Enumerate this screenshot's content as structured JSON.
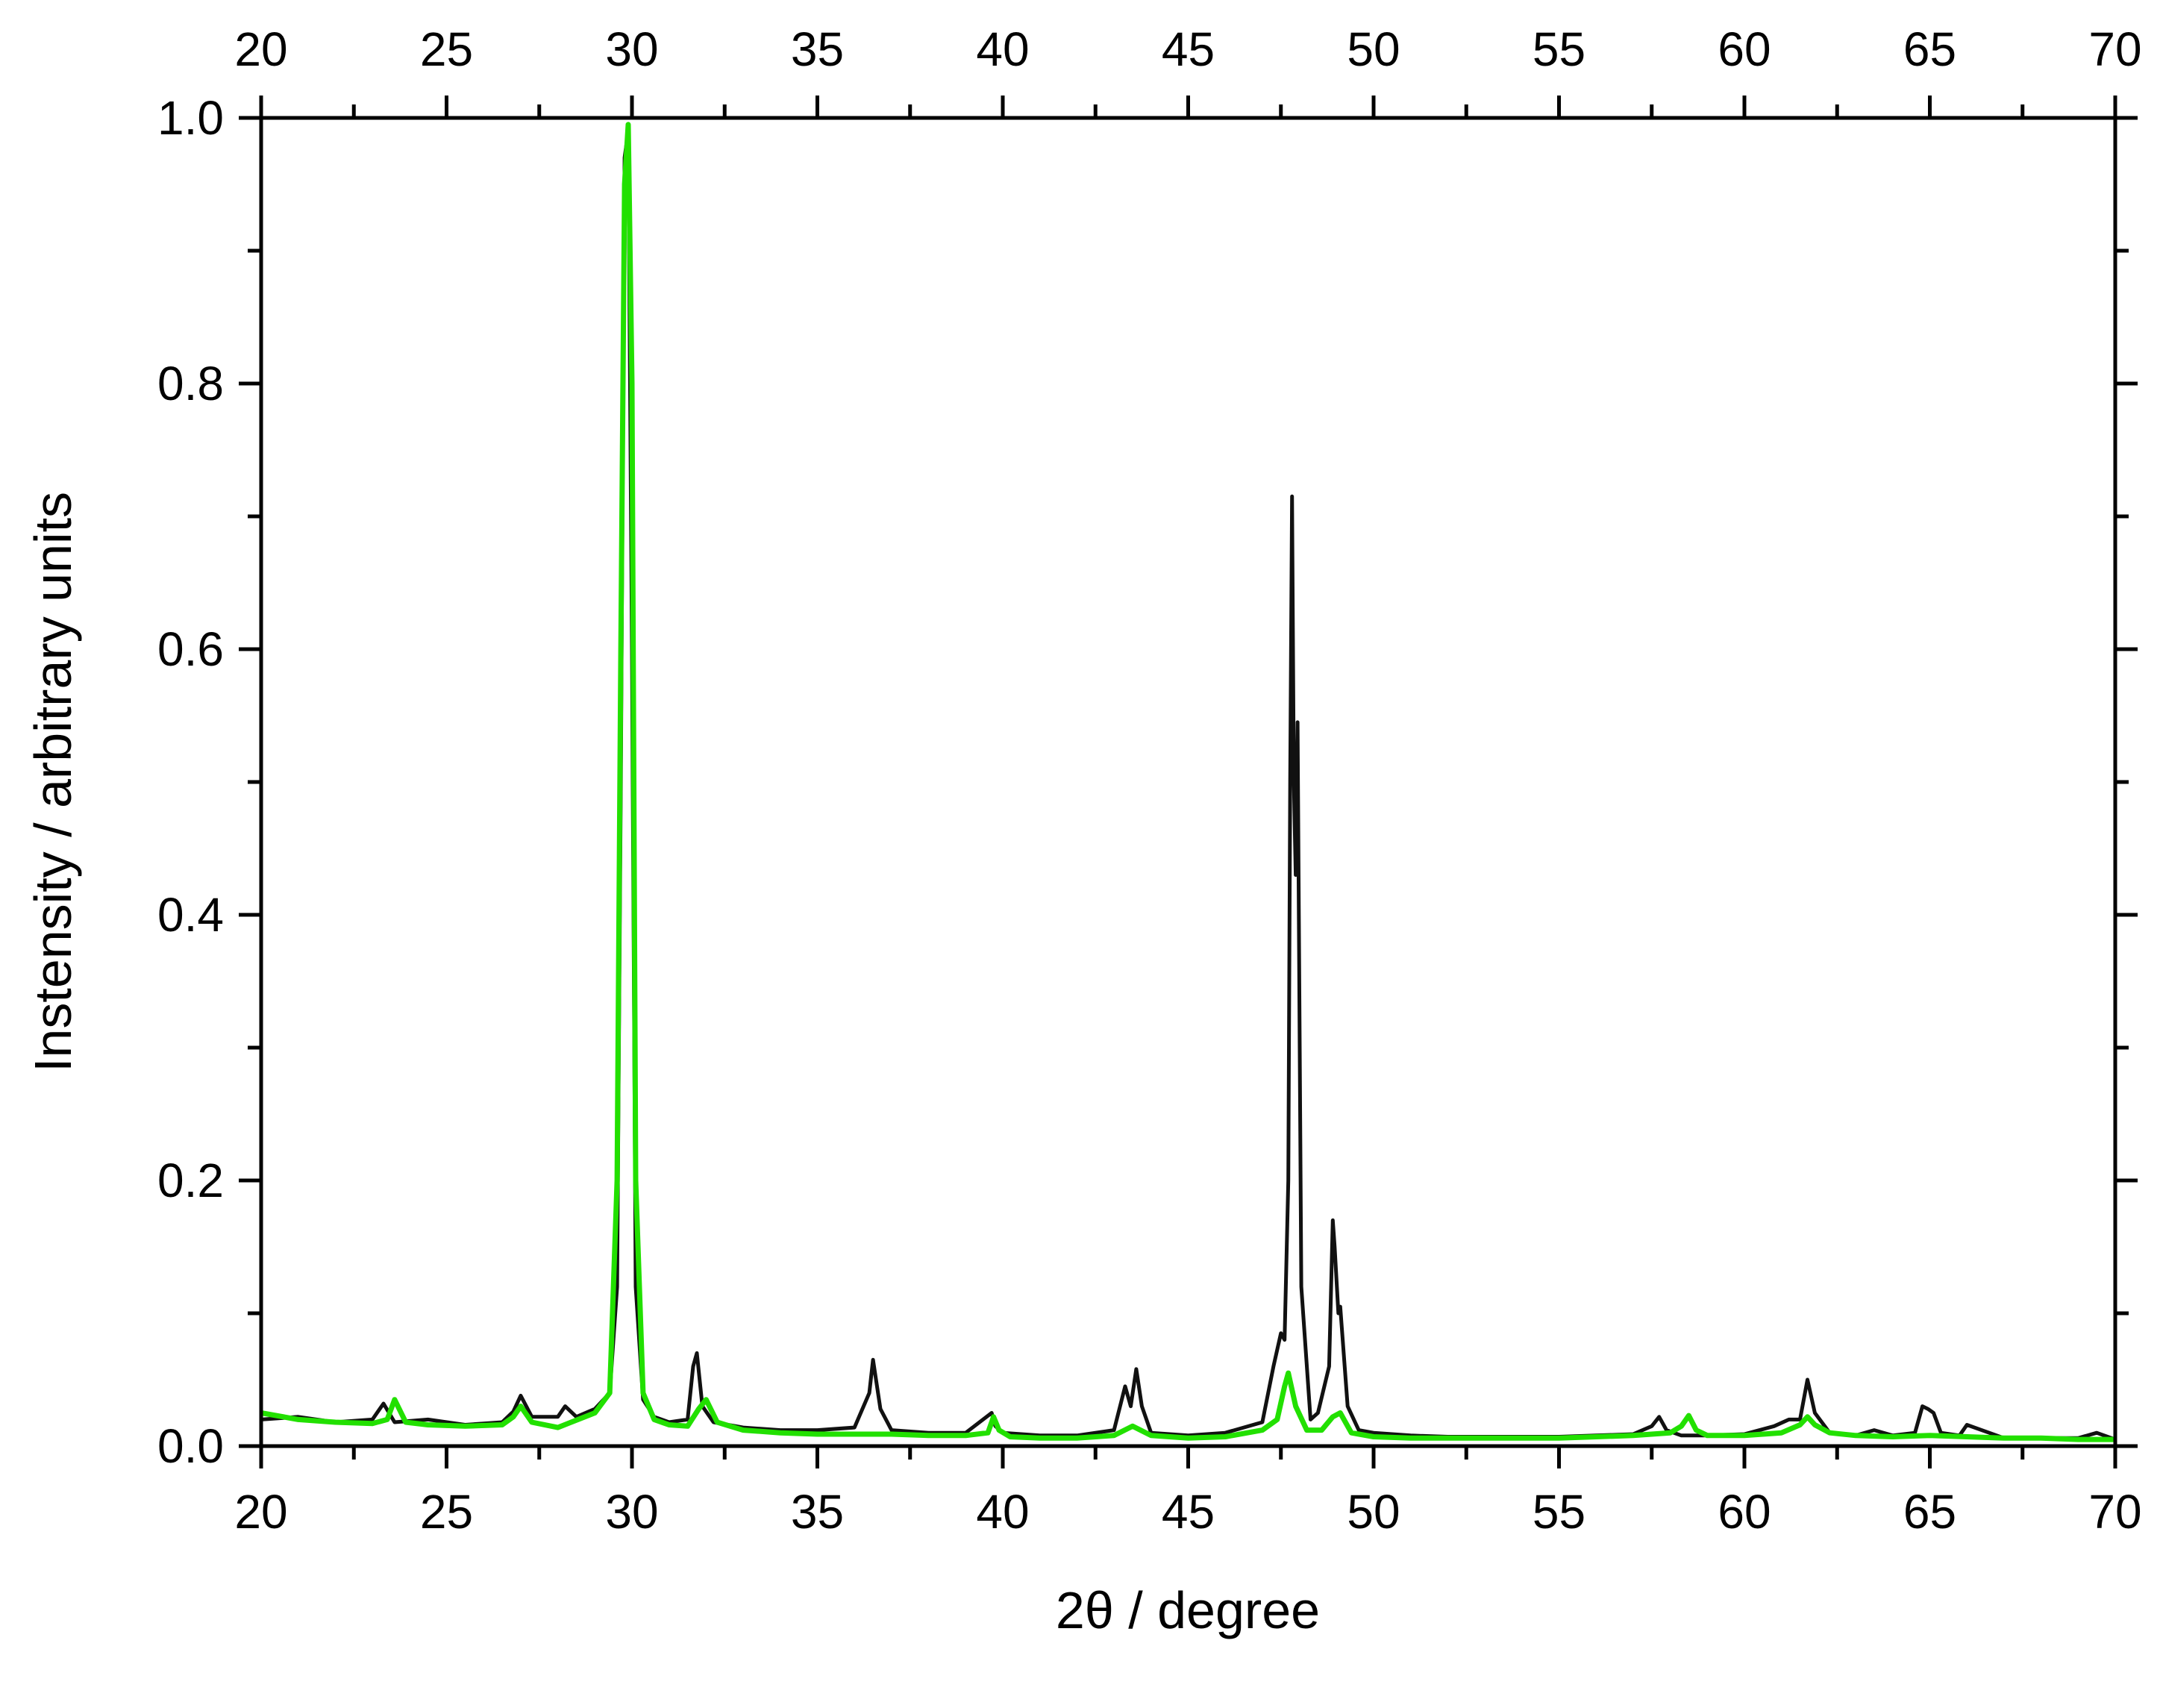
{
  "chart_data": {
    "type": "line",
    "xlabel": "2θ / degree",
    "ylabel": "Instensity / arbitrary units",
    "xlim": [
      20,
      70
    ],
    "ylim": [
      0,
      1.0
    ],
    "x_ticks": [
      "20",
      "25",
      "30",
      "35",
      "40",
      "45",
      "50",
      "55",
      "60",
      "65",
      "70"
    ],
    "x_top_ticks": [
      "20",
      "25",
      "30",
      "35",
      "40",
      "45",
      "50",
      "55",
      "60",
      "65",
      "70"
    ],
    "y_ticks": [
      "0.0",
      "0.2",
      "0.4",
      "0.6",
      "0.8",
      "1.0"
    ],
    "x_tick_values": [
      20,
      25,
      30,
      35,
      40,
      45,
      50,
      55,
      60,
      65,
      70
    ],
    "y_tick_values": [
      0,
      0.2,
      0.4,
      0.6,
      0.8,
      1.0
    ],
    "grid": false,
    "series": [
      {
        "color": "#111111",
        "x": [
          20.0,
          21.0,
          22.0,
          23.0,
          23.3,
          23.6,
          24.5,
          25.5,
          26.5,
          26.8,
          27.0,
          27.3,
          28.0,
          28.2,
          28.5,
          29.0,
          29.4,
          29.6,
          29.7,
          29.8,
          29.9,
          30.0,
          30.1,
          30.3,
          30.6,
          31.0,
          31.5,
          31.65,
          31.75,
          31.9,
          32.2,
          33.0,
          34.0,
          35.0,
          36.0,
          36.4,
          36.5,
          36.7,
          37.0,
          38.0,
          39.0,
          39.7,
          39.8,
          40.0,
          41.0,
          42.0,
          43.0,
          43.3,
          43.45,
          43.6,
          43.75,
          44.0,
          45.0,
          46.0,
          47.0,
          47.3,
          47.5,
          47.6,
          47.7,
          47.75,
          47.8,
          47.85,
          47.9,
          47.95,
          48.05,
          48.3,
          48.5,
          48.8,
          48.9,
          48.95,
          49.05,
          49.1,
          49.3,
          49.6,
          50.0,
          51.0,
          52.0,
          53.0,
          54.0,
          55.0,
          56.0,
          57.0,
          57.5,
          57.7,
          57.9,
          58.3,
          59.0,
          60.0,
          60.8,
          61.2,
          61.5,
          61.7,
          61.9,
          62.3,
          63.0,
          63.5,
          64.0,
          64.6,
          64.8,
          64.95,
          65.1,
          65.3,
          65.8,
          66.0,
          67.0,
          68.0,
          69.0,
          69.5,
          70.0
        ],
        "y": [
          0.02,
          0.022,
          0.018,
          0.02,
          0.032,
          0.018,
          0.02,
          0.016,
          0.018,
          0.026,
          0.038,
          0.022,
          0.022,
          0.03,
          0.022,
          0.028,
          0.04,
          0.12,
          0.5,
          0.97,
          0.99,
          0.6,
          0.12,
          0.035,
          0.022,
          0.018,
          0.02,
          0.06,
          0.07,
          0.03,
          0.018,
          0.014,
          0.012,
          0.012,
          0.014,
          0.04,
          0.065,
          0.028,
          0.012,
          0.01,
          0.01,
          0.025,
          0.015,
          0.01,
          0.008,
          0.008,
          0.012,
          0.045,
          0.03,
          0.058,
          0.03,
          0.01,
          0.008,
          0.01,
          0.018,
          0.06,
          0.085,
          0.08,
          0.2,
          0.5,
          0.715,
          0.5,
          0.43,
          0.545,
          0.12,
          0.02,
          0.025,
          0.06,
          0.17,
          0.15,
          0.1,
          0.105,
          0.03,
          0.012,
          0.01,
          0.008,
          0.007,
          0.007,
          0.007,
          0.007,
          0.008,
          0.009,
          0.015,
          0.022,
          0.012,
          0.008,
          0.008,
          0.009,
          0.015,
          0.02,
          0.02,
          0.05,
          0.025,
          0.01,
          0.008,
          0.012,
          0.008,
          0.01,
          0.03,
          0.028,
          0.025,
          0.01,
          0.008,
          0.016,
          0.006,
          0.006,
          0.006,
          0.01,
          0.005
        ]
      },
      {
        "color": "#22e000",
        "x": [
          20.0,
          21.0,
          22.0,
          23.0,
          23.4,
          23.6,
          23.9,
          24.5,
          25.5,
          26.5,
          26.8,
          27.0,
          27.3,
          28.0,
          29.0,
          29.4,
          29.6,
          29.7,
          29.8,
          29.9,
          30.0,
          30.1,
          30.3,
          30.6,
          31.0,
          31.5,
          31.8,
          32.0,
          32.3,
          33.0,
          34.0,
          35.0,
          36.0,
          37.0,
          38.0,
          39.0,
          39.6,
          39.75,
          39.9,
          40.2,
          41.0,
          42.0,
          43.0,
          43.5,
          44.0,
          45.0,
          46.0,
          47.0,
          47.4,
          47.6,
          47.7,
          47.9,
          48.2,
          48.6,
          48.9,
          49.1,
          49.4,
          50.0,
          51.0,
          52.0,
          53.0,
          54.0,
          55.0,
          56.0,
          57.0,
          58.0,
          58.3,
          58.5,
          58.7,
          59.0,
          60.0,
          61.0,
          61.5,
          61.7,
          61.9,
          62.3,
          63.0,
          64.0,
          65.0,
          66.0,
          67.0,
          68.0,
          69.0,
          70.0
        ],
        "y": [
          0.025,
          0.02,
          0.018,
          0.017,
          0.02,
          0.035,
          0.018,
          0.016,
          0.015,
          0.016,
          0.022,
          0.03,
          0.018,
          0.014,
          0.025,
          0.04,
          0.2,
          0.6,
          0.95,
          0.995,
          0.8,
          0.2,
          0.04,
          0.02,
          0.016,
          0.015,
          0.028,
          0.035,
          0.018,
          0.012,
          0.01,
          0.009,
          0.009,
          0.009,
          0.008,
          0.008,
          0.01,
          0.022,
          0.012,
          0.007,
          0.006,
          0.006,
          0.008,
          0.015,
          0.008,
          0.006,
          0.007,
          0.012,
          0.02,
          0.045,
          0.055,
          0.03,
          0.012,
          0.012,
          0.022,
          0.025,
          0.01,
          0.007,
          0.006,
          0.006,
          0.006,
          0.006,
          0.006,
          0.007,
          0.008,
          0.01,
          0.015,
          0.023,
          0.012,
          0.008,
          0.008,
          0.01,
          0.016,
          0.022,
          0.016,
          0.01,
          0.008,
          0.007,
          0.008,
          0.007,
          0.006,
          0.006,
          0.005,
          0.005
        ]
      }
    ]
  }
}
